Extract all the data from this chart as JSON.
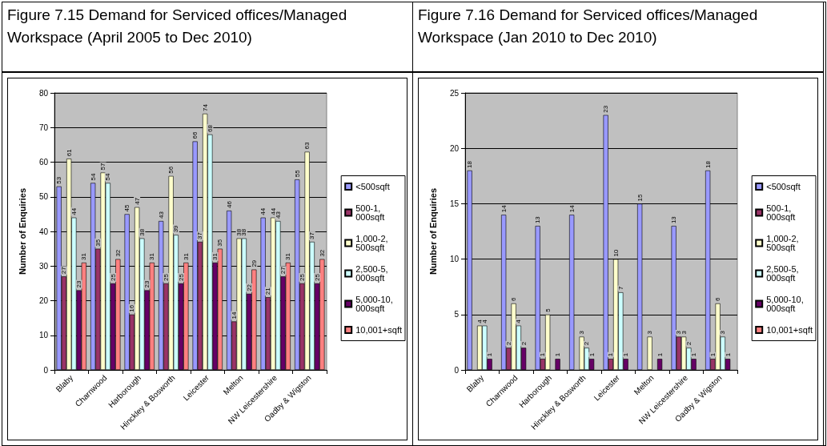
{
  "chart_data": [
    {
      "type": "bar",
      "title": "Figure 7.15 Demand for Serviced offices/Managed Workspace (April 2005 to Dec 2010)",
      "ylabel": "Number of Enquiries",
      "categories": [
        "Blaby",
        "Charnwood",
        "Harborough",
        "Hinckley & Bosworth",
        "Leicester",
        "Melton",
        "NW Leicestershire",
        "Oadby & Wigston"
      ],
      "series": [
        {
          "name": "<500sqft",
          "color": "#9999ff",
          "values": [
            53,
            54,
            45,
            43,
            66,
            46,
            44,
            55
          ]
        },
        {
          "name": "500-1,000sqft",
          "color": "#993366",
          "values": [
            27,
            35,
            16,
            25,
            37,
            14,
            21,
            25
          ]
        },
        {
          "name": "1,000-2,500sqft",
          "color": "#ffffcc",
          "values": [
            61,
            57,
            47,
            56,
            74,
            38,
            44,
            63
          ]
        },
        {
          "name": "2,500-5,000sqft",
          "color": "#ccffff",
          "values": [
            44,
            54,
            38,
            39,
            68,
            38,
            43,
            37
          ]
        },
        {
          "name": "5,000-10,000sqft",
          "color": "#660066",
          "values": [
            23,
            25,
            23,
            25,
            31,
            22,
            27,
            25
          ]
        },
        {
          "name": "10,001+sqft",
          "color": "#ff8080",
          "values": [
            31,
            32,
            31,
            31,
            35,
            29,
            31,
            32
          ]
        }
      ],
      "ylim": [
        0,
        80
      ],
      "yticks": [
        0,
        10,
        20,
        30,
        40,
        50,
        60,
        70,
        80
      ],
      "grid": "y",
      "legend": "right",
      "data_labels": true
    },
    {
      "type": "bar",
      "title": "Figure 7.16 Demand for Serviced offices/Managed Workspace (Jan 2010 to Dec 2010)",
      "ylabel": "Number of Enquiries",
      "categories": [
        "Blaby",
        "Charnwood",
        "Harborough",
        "Hinckley & Bosworth",
        "Leicester",
        "Melton",
        "NW Leicestershire",
        "Oadby & Wigston"
      ],
      "series": [
        {
          "name": "<500sqft",
          "color": "#9999ff",
          "values": [
            18,
            14,
            13,
            14,
            23,
            15,
            13,
            18
          ]
        },
        {
          "name": "500-1,000sqft",
          "color": "#993366",
          "values": [
            null,
            2,
            1,
            null,
            1,
            null,
            3,
            1
          ]
        },
        {
          "name": "1,000-2,500sqft",
          "color": "#ffffcc",
          "values": [
            4,
            6,
            5,
            3,
            10,
            3,
            3,
            6
          ]
        },
        {
          "name": "2,500-5,000sqft",
          "color": "#ccffff",
          "values": [
            4,
            4,
            null,
            2,
            7,
            null,
            2,
            3
          ]
        },
        {
          "name": "5,000-10,000sqft",
          "color": "#660066",
          "values": [
            1,
            2,
            1,
            1,
            1,
            1,
            1,
            1
          ]
        },
        {
          "name": "10,001+sqft",
          "color": "#ff8080",
          "values": [
            null,
            null,
            null,
            null,
            null,
            null,
            null,
            null
          ]
        }
      ],
      "ylim": [
        0,
        25
      ],
      "yticks": [
        0,
        5,
        10,
        15,
        20,
        25
      ],
      "grid": "y",
      "legend": "right",
      "data_labels": true
    }
  ]
}
